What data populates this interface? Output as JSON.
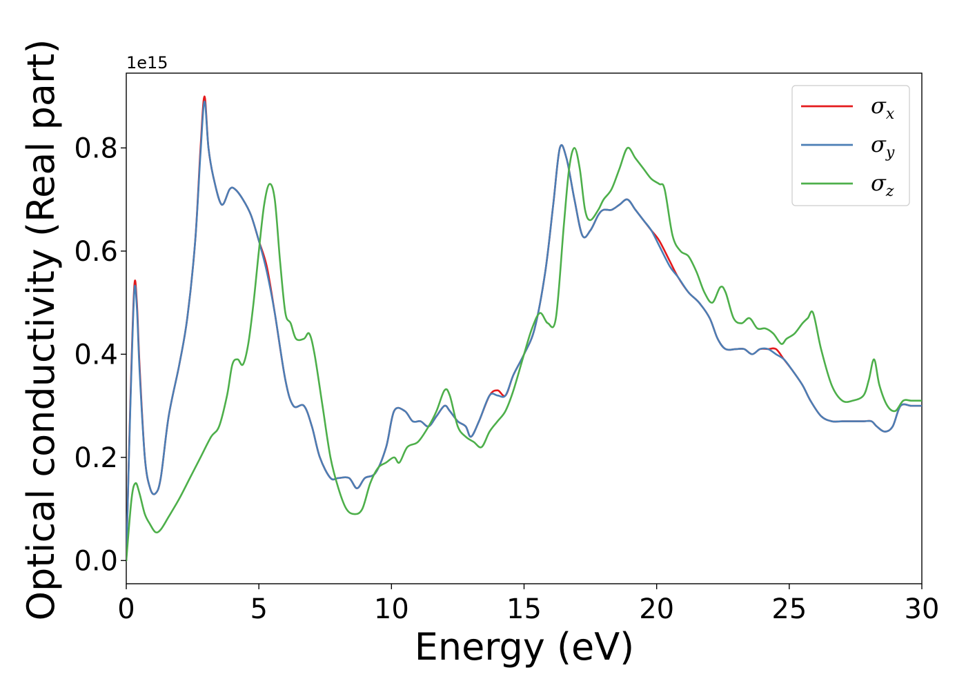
{
  "chart_data": {
    "type": "line",
    "title": "",
    "xlabel": "Energy (eV)",
    "ylabel": "Optical conductivity (Real part)",
    "y_offset_label": "1e15",
    "xlim": [
      0,
      30
    ],
    "ylim": [
      -0.045,
      0.945
    ],
    "xticks": [
      0,
      5,
      10,
      15,
      20,
      25,
      30
    ],
    "yticks": [
      0.0,
      0.2,
      0.4,
      0.6,
      0.8
    ],
    "ytick_labels": [
      "0.0",
      "0.2",
      "0.4",
      "0.6",
      "0.8"
    ],
    "grid": false,
    "legend_position": "top-right",
    "series": [
      {
        "name": "σx",
        "symbol": "σ",
        "subscript": "x",
        "color": "#e41a1c",
        "x": [
          0,
          0.15,
          0.3,
          0.4,
          0.5,
          0.7,
          0.9,
          1.1,
          1.3,
          1.6,
          2.0,
          2.3,
          2.6,
          2.8,
          2.95,
          3.1,
          3.3,
          3.6,
          3.9,
          4.1,
          4.4,
          4.7,
          5.0,
          5.3,
          5.6,
          6.0,
          6.3,
          6.7,
          7.0,
          7.3,
          7.7,
          8.0,
          8.4,
          8.7,
          9.0,
          9.4,
          9.8,
          10.1,
          10.5,
          10.8,
          11.1,
          11.4,
          11.7,
          12.0,
          12.2,
          12.5,
          12.8,
          13.0,
          13.3,
          13.7,
          14.0,
          14.3,
          14.6,
          15.0,
          15.4,
          15.8,
          16.1,
          16.35,
          16.6,
          16.9,
          17.2,
          17.5,
          17.8,
          18.0,
          18.3,
          18.6,
          18.9,
          19.2,
          19.5,
          19.8,
          20.1,
          20.5,
          20.8,
          21.2,
          21.6,
          22.0,
          22.3,
          22.6,
          23.0,
          23.3,
          23.6,
          23.9,
          24.2,
          24.5,
          24.8,
          25.1,
          25.5,
          25.8,
          26.2,
          26.6,
          27.0,
          27.4,
          27.8,
          28.1,
          28.3,
          28.6,
          28.9,
          29.2,
          29.6,
          30.0
        ],
        "values": [
          0.0,
          0.3,
          0.53,
          0.5,
          0.38,
          0.2,
          0.14,
          0.13,
          0.16,
          0.28,
          0.38,
          0.47,
          0.62,
          0.8,
          0.9,
          0.8,
          0.74,
          0.69,
          0.72,
          0.72,
          0.7,
          0.67,
          0.62,
          0.57,
          0.48,
          0.35,
          0.3,
          0.3,
          0.26,
          0.2,
          0.16,
          0.16,
          0.16,
          0.14,
          0.16,
          0.17,
          0.22,
          0.29,
          0.29,
          0.27,
          0.27,
          0.26,
          0.28,
          0.3,
          0.29,
          0.27,
          0.26,
          0.24,
          0.27,
          0.32,
          0.33,
          0.32,
          0.36,
          0.4,
          0.45,
          0.56,
          0.69,
          0.8,
          0.78,
          0.7,
          0.63,
          0.64,
          0.67,
          0.68,
          0.68,
          0.69,
          0.7,
          0.68,
          0.66,
          0.64,
          0.62,
          0.58,
          0.55,
          0.52,
          0.5,
          0.47,
          0.43,
          0.41,
          0.41,
          0.41,
          0.4,
          0.41,
          0.41,
          0.41,
          0.39,
          0.37,
          0.34,
          0.31,
          0.28,
          0.27,
          0.27,
          0.27,
          0.27,
          0.27,
          0.26,
          0.25,
          0.26,
          0.3,
          0.3,
          0.3
        ]
      },
      {
        "name": "σy",
        "symbol": "σ",
        "subscript": "y",
        "color": "#4a7eb5",
        "x": [
          0,
          0.15,
          0.3,
          0.4,
          0.5,
          0.7,
          0.9,
          1.1,
          1.3,
          1.6,
          2.0,
          2.3,
          2.6,
          2.8,
          2.95,
          3.1,
          3.3,
          3.6,
          3.9,
          4.1,
          4.4,
          4.7,
          5.0,
          5.3,
          5.6,
          6.0,
          6.3,
          6.7,
          7.0,
          7.3,
          7.7,
          8.0,
          8.4,
          8.7,
          9.0,
          9.4,
          9.8,
          10.1,
          10.5,
          10.8,
          11.1,
          11.4,
          11.7,
          12.0,
          12.2,
          12.5,
          12.8,
          13.0,
          13.3,
          13.7,
          14.0,
          14.3,
          14.6,
          15.0,
          15.4,
          15.8,
          16.1,
          16.35,
          16.6,
          16.9,
          17.2,
          17.5,
          17.8,
          18.0,
          18.3,
          18.6,
          18.9,
          19.2,
          19.5,
          19.8,
          20.1,
          20.5,
          20.8,
          21.2,
          21.6,
          22.0,
          22.3,
          22.6,
          23.0,
          23.3,
          23.6,
          23.9,
          24.2,
          24.5,
          24.8,
          25.1,
          25.5,
          25.8,
          26.2,
          26.6,
          27.0,
          27.4,
          27.8,
          28.1,
          28.3,
          28.6,
          28.9,
          29.2,
          29.6,
          30.0
        ],
        "values": [
          0.0,
          0.29,
          0.52,
          0.49,
          0.37,
          0.2,
          0.14,
          0.13,
          0.16,
          0.28,
          0.38,
          0.47,
          0.62,
          0.79,
          0.89,
          0.8,
          0.74,
          0.69,
          0.72,
          0.72,
          0.7,
          0.67,
          0.62,
          0.56,
          0.48,
          0.35,
          0.3,
          0.3,
          0.26,
          0.2,
          0.16,
          0.16,
          0.16,
          0.14,
          0.16,
          0.17,
          0.22,
          0.29,
          0.29,
          0.27,
          0.27,
          0.26,
          0.28,
          0.3,
          0.29,
          0.27,
          0.26,
          0.24,
          0.27,
          0.32,
          0.32,
          0.32,
          0.36,
          0.4,
          0.45,
          0.56,
          0.69,
          0.8,
          0.78,
          0.7,
          0.63,
          0.64,
          0.67,
          0.68,
          0.68,
          0.69,
          0.7,
          0.68,
          0.66,
          0.64,
          0.61,
          0.57,
          0.55,
          0.52,
          0.5,
          0.47,
          0.43,
          0.41,
          0.41,
          0.41,
          0.4,
          0.41,
          0.41,
          0.4,
          0.39,
          0.37,
          0.34,
          0.31,
          0.28,
          0.27,
          0.27,
          0.27,
          0.27,
          0.27,
          0.26,
          0.25,
          0.26,
          0.3,
          0.3,
          0.3
        ]
      },
      {
        "name": "σz",
        "symbol": "σ",
        "subscript": "z",
        "color": "#4daf4a",
        "x": [
          0,
          0.2,
          0.35,
          0.5,
          0.7,
          0.9,
          1.1,
          1.3,
          1.6,
          2.0,
          2.4,
          2.8,
          3.2,
          3.5,
          3.8,
          4.0,
          4.2,
          4.4,
          4.6,
          4.8,
          5.0,
          5.2,
          5.4,
          5.6,
          5.8,
          6.0,
          6.2,
          6.4,
          6.7,
          6.9,
          7.1,
          7.4,
          7.7,
          8.0,
          8.3,
          8.6,
          8.9,
          9.2,
          9.5,
          9.8,
          10.1,
          10.3,
          10.6,
          11.0,
          11.4,
          11.7,
          12.0,
          12.2,
          12.5,
          12.8,
          13.1,
          13.4,
          13.7,
          14.0,
          14.3,
          14.6,
          15.0,
          15.3,
          15.6,
          15.9,
          16.2,
          16.5,
          16.7,
          16.9,
          17.1,
          17.3,
          17.5,
          17.8,
          18.0,
          18.3,
          18.6,
          18.9,
          19.2,
          19.5,
          19.8,
          20.1,
          20.3,
          20.6,
          20.9,
          21.2,
          21.5,
          21.8,
          22.1,
          22.4,
          22.6,
          22.9,
          23.2,
          23.5,
          23.8,
          24.1,
          24.4,
          24.7,
          24.9,
          25.2,
          25.5,
          25.7,
          25.9,
          26.2,
          26.6,
          27.0,
          27.4,
          27.8,
          28.0,
          28.2,
          28.4,
          28.7,
          29.0,
          29.3,
          29.6,
          30.0
        ],
        "values": [
          0.0,
          0.12,
          0.15,
          0.13,
          0.09,
          0.07,
          0.055,
          0.06,
          0.085,
          0.12,
          0.16,
          0.2,
          0.24,
          0.26,
          0.32,
          0.38,
          0.39,
          0.38,
          0.42,
          0.5,
          0.6,
          0.69,
          0.73,
          0.7,
          0.58,
          0.48,
          0.46,
          0.43,
          0.43,
          0.44,
          0.4,
          0.3,
          0.2,
          0.14,
          0.1,
          0.09,
          0.1,
          0.15,
          0.18,
          0.19,
          0.2,
          0.19,
          0.22,
          0.23,
          0.26,
          0.29,
          0.33,
          0.32,
          0.26,
          0.24,
          0.23,
          0.22,
          0.25,
          0.27,
          0.29,
          0.33,
          0.4,
          0.45,
          0.48,
          0.46,
          0.47,
          0.65,
          0.76,
          0.8,
          0.76,
          0.68,
          0.66,
          0.68,
          0.7,
          0.72,
          0.76,
          0.8,
          0.78,
          0.76,
          0.74,
          0.73,
          0.72,
          0.63,
          0.6,
          0.59,
          0.56,
          0.52,
          0.5,
          0.53,
          0.52,
          0.47,
          0.46,
          0.47,
          0.45,
          0.45,
          0.44,
          0.42,
          0.43,
          0.44,
          0.46,
          0.47,
          0.48,
          0.41,
          0.34,
          0.31,
          0.31,
          0.32,
          0.35,
          0.39,
          0.34,
          0.3,
          0.29,
          0.31,
          0.31,
          0.31
        ]
      }
    ]
  }
}
